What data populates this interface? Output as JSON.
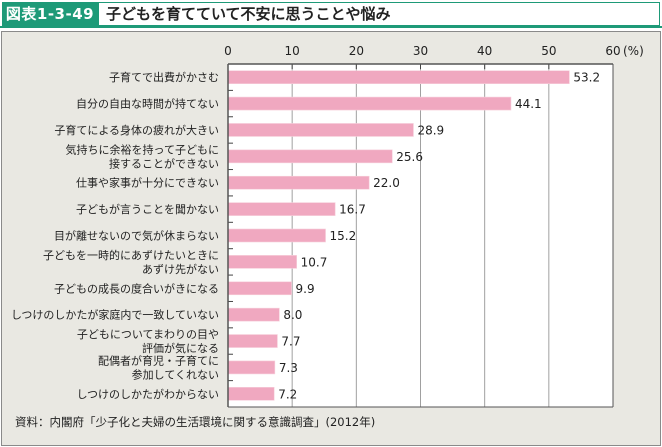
{
  "header": {
    "figure_id": "図表1-3-49",
    "title": "子どもを育てていて不安に思うことや悩み"
  },
  "source": "資料：内閣府「少子化と夫婦の生活環境に関する意識調査」(2012年)",
  "colors": {
    "accent": "#1e9a78",
    "bar": "#f0a8c0",
    "panel_bg": "#e9e8e2",
    "plot_bg": "#ffffff"
  },
  "chart_data": {
    "type": "bar",
    "orientation": "horizontal",
    "title": "子どもを育てていて不安に思うことや悩み",
    "xlabel": "",
    "unit_label": "(%)",
    "xlim": [
      0,
      60
    ],
    "xticks": [
      0,
      10,
      20,
      30,
      40,
      50,
      60
    ],
    "grid": true,
    "categories": [
      [
        "子育てで出費がかさむ"
      ],
      [
        "自分の自由な時間が持てない"
      ],
      [
        "子育てによる身体の疲れが大きい"
      ],
      [
        "気持ちに余裕を持って子どもに",
        "接することができない"
      ],
      [
        "仕事や家事が十分にできない"
      ],
      [
        "子どもが言うことを聞かない"
      ],
      [
        "目が離せないので気が休まらない"
      ],
      [
        "子どもを一時的にあずけたいときに",
        "あずけ先がない"
      ],
      [
        "子どもの成長の度合いがきになる"
      ],
      [
        "しつけのしかたが家庭内で一致していない"
      ],
      [
        "子どもについてまわりの目や",
        "評価が気になる"
      ],
      [
        "配偶者が育児・子育てに",
        "参加してくれない"
      ],
      [
        "しつけのしかたがわからない"
      ]
    ],
    "values": [
      53.2,
      44.1,
      28.9,
      25.6,
      22.0,
      16.7,
      15.2,
      10.7,
      9.9,
      8.0,
      7.7,
      7.3,
      7.2
    ],
    "value_labels": [
      "53.2",
      "44.1",
      "28.9",
      "25.6",
      "22.0",
      "16.7",
      "15.2",
      "10.7",
      "9.9",
      "8.0",
      "7.7",
      "7.3",
      "7.2"
    ]
  }
}
